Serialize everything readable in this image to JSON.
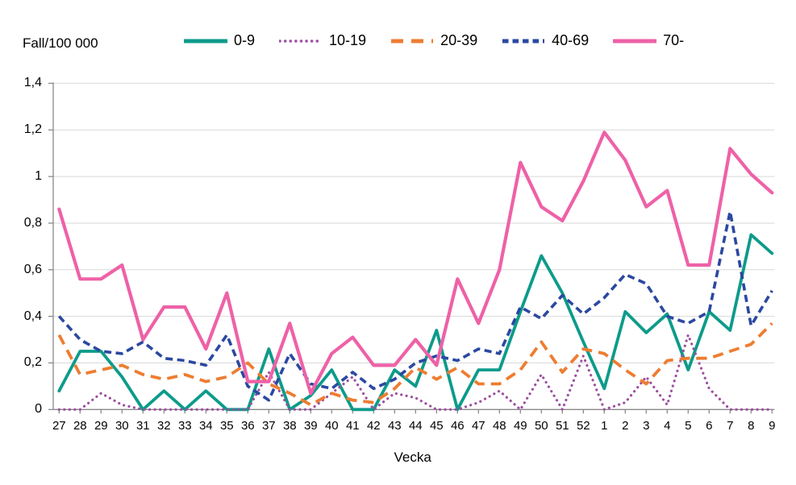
{
  "figure": {
    "y_axis_unit_label": "Fall/100 000",
    "x_axis_title": "Vecka"
  },
  "colors": {
    "teal": "#0d9b8a",
    "purple": "#9c4f9f",
    "orange": "#ed7d31",
    "navy": "#2b48a1",
    "pink": "#ee61a7",
    "gridline": "#d9d9d9",
    "axis": "#898989",
    "text": "#000000",
    "background": "#ffffff"
  },
  "chart_data": {
    "type": "line",
    "title": "",
    "xlabel": "Vecka",
    "ylabel": "Fall/100 000",
    "ylim": [
      0,
      1.4
    ],
    "grid": true,
    "legend_position": "top",
    "y_tick_values": [
      0,
      0.2,
      0.4,
      0.6,
      0.8,
      1.0,
      1.2,
      1.4
    ],
    "y_tick_labels": [
      "0",
      "0,2",
      "0,4",
      "0,6",
      "0,8",
      "1",
      "1,2",
      "1,4"
    ],
    "categories": [
      "27",
      "28",
      "29",
      "30",
      "31",
      "32",
      "33",
      "34",
      "35",
      "36",
      "37",
      "38",
      "39",
      "40",
      "41",
      "42",
      "43",
      "44",
      "45",
      "46",
      "47",
      "48",
      "49",
      "50",
      "51",
      "52",
      "1",
      "2",
      "3",
      "4",
      "5",
      "6",
      "7",
      "8",
      "9"
    ],
    "series": [
      {
        "name": "0-9",
        "color_key": "teal",
        "dash": "solid",
        "values": [
          0.08,
          0.25,
          0.25,
          0.14,
          0,
          0.08,
          0,
          0.08,
          0,
          0,
          0.26,
          0,
          0.06,
          0.17,
          0,
          0,
          0.17,
          0.1,
          0.34,
          0,
          0.17,
          0.17,
          0.42,
          0.66,
          0.5,
          0.29,
          0.09,
          0.42,
          0.33,
          0.41,
          0.17,
          0.42,
          0.34,
          0.75,
          0.67
        ]
      },
      {
        "name": "10-19",
        "color_key": "purple",
        "dash": "dotted",
        "values": [
          0,
          0,
          0.07,
          0.02,
          0,
          0,
          0,
          0,
          0,
          0,
          0.16,
          0,
          0,
          0.07,
          0.14,
          0,
          0.07,
          0.05,
          0,
          0,
          0.03,
          0.08,
          0,
          0.15,
          0,
          0.23,
          0,
          0.03,
          0.14,
          0.02,
          0.32,
          0.09,
          0,
          0,
          0
        ]
      },
      {
        "name": "20-39",
        "color_key": "orange",
        "dash": "long-dash",
        "values": [
          0.32,
          0.15,
          0.17,
          0.19,
          0.15,
          0.13,
          0.15,
          0.12,
          0.14,
          0.2,
          0.11,
          0.07,
          0.02,
          0.07,
          0.04,
          0.03,
          0.09,
          0.18,
          0.13,
          0.18,
          0.11,
          0.11,
          0.17,
          0.29,
          0.16,
          0.26,
          0.24,
          0.17,
          0.11,
          0.21,
          0.22,
          0.22,
          0.25,
          0.28,
          0.37
        ]
      },
      {
        "name": "40-69",
        "color_key": "navy",
        "dash": "short-dash",
        "values": [
          0.4,
          0.3,
          0.25,
          0.24,
          0.29,
          0.22,
          0.21,
          0.19,
          0.32,
          0.1,
          0.04,
          0.24,
          0.11,
          0.09,
          0.16,
          0.09,
          0.13,
          0.2,
          0.23,
          0.21,
          0.26,
          0.24,
          0.44,
          0.39,
          0.49,
          0.41,
          0.48,
          0.58,
          0.54,
          0.4,
          0.37,
          0.42,
          0.85,
          0.36,
          0.51
        ]
      },
      {
        "name": "70-",
        "color_key": "pink",
        "dash": "solid",
        "values": [
          0.86,
          0.56,
          0.56,
          0.62,
          0.3,
          0.44,
          0.44,
          0.26,
          0.5,
          0.12,
          0.12,
          0.37,
          0.07,
          0.24,
          0.31,
          0.19,
          0.19,
          0.3,
          0.19,
          0.56,
          0.37,
          0.6,
          1.06,
          0.87,
          0.81,
          0.98,
          1.19,
          1.07,
          0.87,
          0.94,
          0.62,
          0.62,
          1.12,
          1.01,
          0.93
        ]
      }
    ]
  }
}
